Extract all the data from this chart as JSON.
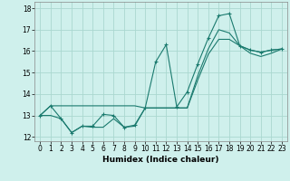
{
  "xlabel": "Humidex (Indice chaleur)",
  "background_color": "#cff0ec",
  "grid_color": "#aad8d0",
  "line_color": "#1a7a6e",
  "xlim": [
    -0.5,
    23.5
  ],
  "ylim": [
    11.8,
    18.3
  ],
  "yticks": [
    12,
    13,
    14,
    15,
    16,
    17,
    18
  ],
  "xticks": [
    0,
    1,
    2,
    3,
    4,
    5,
    6,
    7,
    8,
    9,
    10,
    11,
    12,
    13,
    14,
    15,
    16,
    17,
    18,
    19,
    20,
    21,
    22,
    23
  ],
  "series1_x": [
    0,
    1,
    2,
    3,
    4,
    5,
    6,
    7,
    8,
    9,
    10,
    11,
    12,
    13,
    14,
    15,
    16,
    17,
    18,
    19,
    20,
    21,
    22,
    23
  ],
  "series1_y": [
    13.0,
    13.45,
    12.85,
    12.2,
    12.5,
    12.5,
    13.05,
    13.0,
    12.45,
    12.55,
    13.35,
    15.5,
    16.3,
    13.4,
    14.1,
    15.4,
    16.6,
    17.65,
    17.75,
    16.25,
    16.05,
    15.95,
    16.05,
    16.1
  ],
  "series2_x": [
    0,
    1,
    2,
    3,
    4,
    5,
    6,
    7,
    8,
    9,
    10,
    11,
    12,
    13,
    14,
    15,
    16,
    17,
    18,
    19,
    20,
    21,
    22,
    23
  ],
  "series2_y": [
    13.0,
    13.45,
    13.45,
    13.45,
    13.45,
    13.45,
    13.45,
    13.45,
    13.45,
    13.45,
    13.35,
    13.35,
    13.35,
    13.35,
    13.35,
    14.85,
    16.1,
    17.0,
    16.85,
    16.25,
    16.05,
    15.95,
    16.05,
    16.1
  ],
  "series3_x": [
    0,
    1,
    2,
    3,
    4,
    5,
    6,
    7,
    8,
    9,
    10,
    11,
    12,
    13,
    14,
    15,
    16,
    17,
    18,
    19,
    20,
    21,
    22,
    23
  ],
  "series3_y": [
    13.0,
    13.0,
    12.85,
    12.2,
    12.5,
    12.45,
    12.45,
    12.85,
    12.45,
    12.5,
    13.35,
    13.35,
    13.35,
    13.35,
    13.35,
    14.65,
    15.85,
    16.55,
    16.55,
    16.25,
    15.9,
    15.75,
    15.9,
    16.1
  ]
}
